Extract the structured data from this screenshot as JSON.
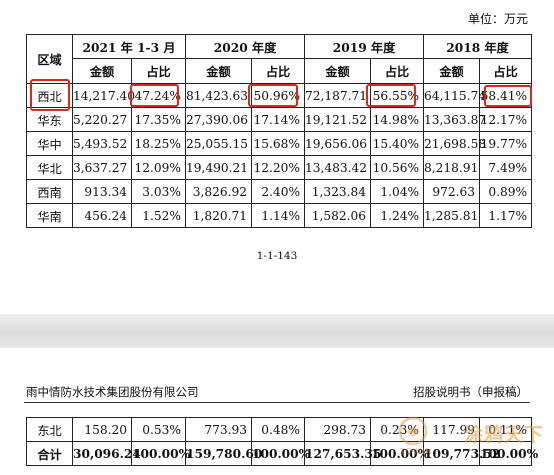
{
  "page1": {
    "unit": "单位：万元",
    "table": {
      "region_header": "区域",
      "periods": [
        "2021 年 1-3 月",
        "2020 年度",
        "2019 年度",
        "2018 年度"
      ],
      "sub_headers": [
        "金额",
        "占比"
      ],
      "rows": [
        {
          "region": "西北",
          "values": [
            "14,217.40",
            "47.24%",
            "81,423.63",
            "50.96%",
            "72,187.71",
            "56.55%",
            "64,115.74",
            "58.41%"
          ]
        },
        {
          "region": "华东",
          "values": [
            "5,220.27",
            "17.35%",
            "27,390.06",
            "17.14%",
            "19,121.52",
            "14.98%",
            "13,363.87",
            "12.17%"
          ]
        },
        {
          "region": "华中",
          "values": [
            "5,493.52",
            "18.25%",
            "25,055.15",
            "15.68%",
            "19,656.06",
            "15.40%",
            "21,698.58",
            "19.77%"
          ]
        },
        {
          "region": "华北",
          "values": [
            "3,637.27",
            "12.09%",
            "19,490.21",
            "12.20%",
            "13,483.42",
            "10.56%",
            "8,218.91",
            "7.49%"
          ]
        },
        {
          "region": "西南",
          "values": [
            "913.34",
            "3.03%",
            "3,826.92",
            "2.40%",
            "1,323.84",
            "1.04%",
            "972.63",
            "0.89%"
          ]
        },
        {
          "region": "华南",
          "values": [
            "456.24",
            "1.52%",
            "1,820.71",
            "1.14%",
            "1,582.06",
            "1.24%",
            "1,285.81",
            "1.17%"
          ]
        }
      ]
    },
    "page_number": "1-1-143"
  },
  "page2": {
    "company": "雨中情防水技术集团股份有限公司",
    "doc_title": "招股说明书（申报稿）",
    "rows": [
      {
        "region": "东北",
        "values": [
          "158.20",
          "0.53%",
          "773.93",
          "0.48%",
          "298.73",
          "0.23%",
          "117.99",
          "0.11%"
        ]
      },
      {
        "region": "合计",
        "values": [
          "30,096.24",
          "100.00%",
          "159,780.60",
          "100.00%",
          "127,653.35",
          "100.00%",
          "109,773.52",
          "100.00%"
        ]
      }
    ]
  },
  "watermark": {
    "text": "涂鸦天下",
    "sub": "TOWIN"
  },
  "colors": {
    "highlight": "#e0261b",
    "gap": "#dcdcdc"
  }
}
